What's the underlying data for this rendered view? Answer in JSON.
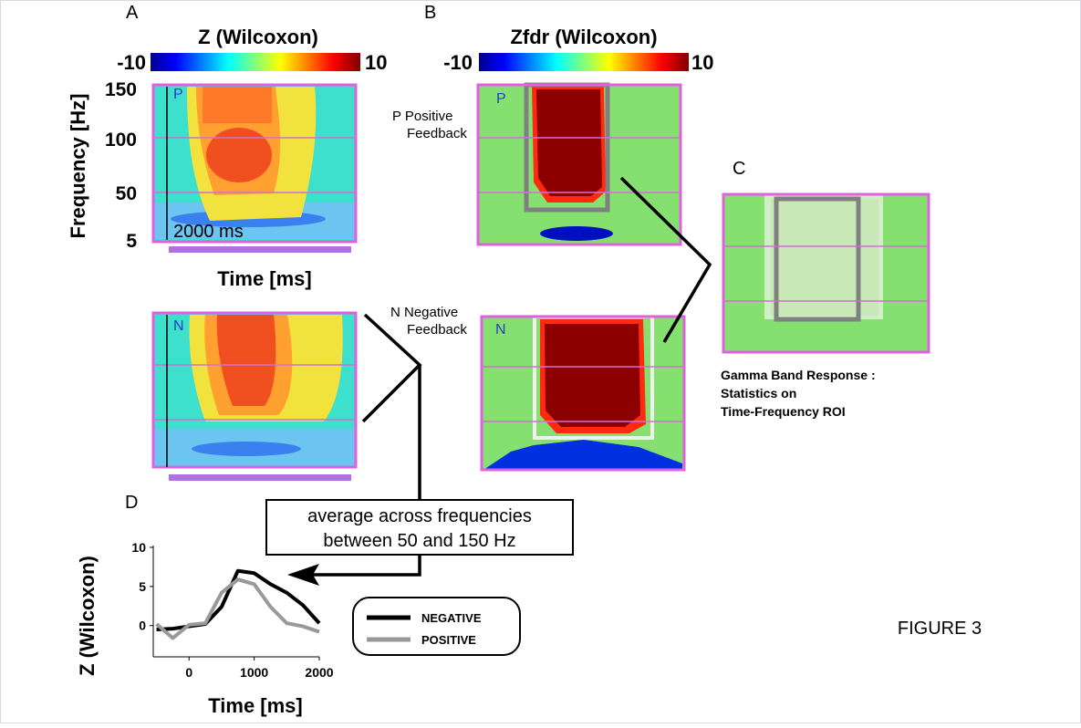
{
  "figure": {
    "panel_a": {
      "letter": "A",
      "colorbar_title": "Z (Wilcoxon)",
      "colorbar_min": -10,
      "colorbar_max": 10,
      "y_label": "Frequency [Hz]",
      "yticks": [
        150,
        100,
        50,
        5
      ],
      "x_label": "Time [ms]",
      "scale_label": "2000 ms",
      "tag_top": "P",
      "tag_bottom": "N"
    },
    "panel_b": {
      "letter": "B",
      "colorbar_title": "Zfdr (Wilcoxon)",
      "colorbar_min": -10,
      "colorbar_max": 10,
      "tag_top": "P",
      "tag_bottom": "N",
      "label_top": [
        "P Positive",
        "Feedback"
      ],
      "label_bottom": [
        "N Negative",
        "Feedback"
      ]
    },
    "panel_c": {
      "letter": "C",
      "caption": [
        "Gamma Band Response :",
        "Statistics on",
        "Time-Frequency ROI"
      ]
    },
    "panel_d": {
      "letter": "D",
      "note": [
        "average across frequencies",
        "between 50 and 150 Hz"
      ]
    },
    "figure_label": "FIGURE 3"
  },
  "chart_data": {
    "type": "line",
    "y_label": "Z (Wilcoxon)",
    "x_label": "Time [ms]",
    "x": [
      -500,
      -250,
      0,
      250,
      500,
      750,
      1000,
      1250,
      1500,
      1750,
      2000
    ],
    "series": [
      {
        "name": "NEGATIVE",
        "color": "#000000",
        "values": [
          -0.5,
          -0.4,
          -0.1,
          0.2,
          2.4,
          7,
          6.7,
          5.3,
          4.2,
          2.6,
          0.3
        ]
      },
      {
        "name": "POSITIVE",
        "color": "#999999",
        "values": [
          0.2,
          -1.6,
          0.1,
          0.3,
          4.2,
          5.9,
          5.3,
          2.4,
          0.3,
          -0.1,
          -0.8
        ]
      }
    ],
    "xlim": [
      -550,
      2000
    ],
    "ylim": [
      -4,
      10
    ],
    "xticks": [
      0,
      1000,
      2000
    ],
    "yticks": [
      10,
      5,
      0
    ]
  }
}
